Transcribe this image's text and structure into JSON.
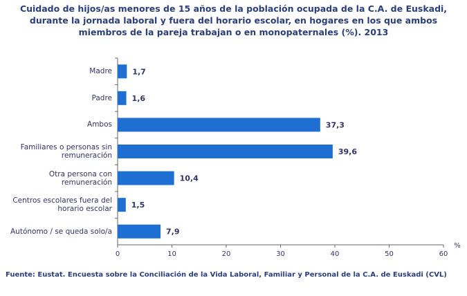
{
  "chart_data": {
    "type": "barh",
    "title": "Cuidado de hijos/as menores de 15 años de la población ocupada de la C.A. de Euskadi, durante la jornada laboral y fuera del horario escolar, en hogares en los que ambos miembros de la pareja trabajan o en monopaternales (%). 2013",
    "categories": [
      "Madre",
      "Padre",
      "Ambos",
      "Familiares o personas sin remuneración",
      "Otra persona con remuneración",
      "Centros escolares fuera del horario escolar",
      "Autónomo / se queda solo/a"
    ],
    "values": [
      1.7,
      1.6,
      37.3,
      39.6,
      10.4,
      1.5,
      7.9
    ],
    "value_labels": [
      "1,7",
      "1,6",
      "37,3",
      "39,6",
      "10,4",
      "1,5",
      "7,9"
    ],
    "color": "#1e6fd1",
    "xlim": [
      0,
      60
    ],
    "xticks": [
      0,
      10,
      20,
      30,
      40,
      50,
      60
    ],
    "xlabel": "%",
    "grid": false,
    "source": "Fuente: Eustat. Encuesta sobre la Conciliación de la Vida Laboral, Familiar y Personal de la C.A. de Euskadi (CVL)"
  }
}
